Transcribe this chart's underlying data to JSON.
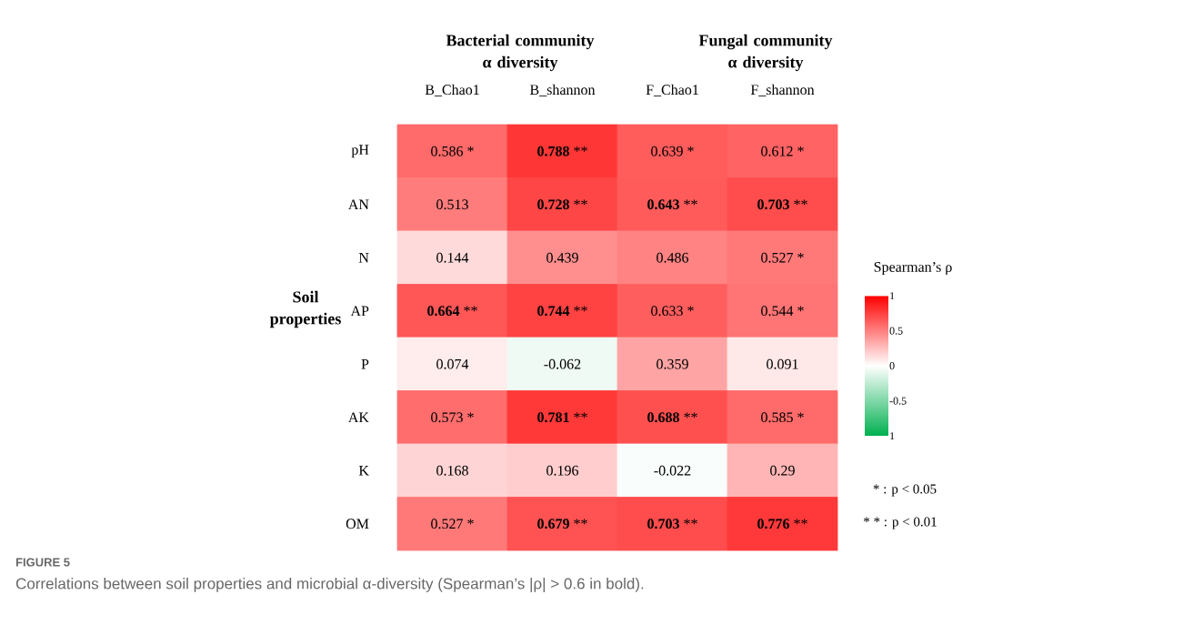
{
  "chart_data": {
    "type": "heatmap",
    "categories": [
      "B_Chao1",
      "B_shannon",
      "F_Chao1",
      "F_shannon"
    ],
    "y_categories": [
      "pH",
      "AN",
      "N",
      "AP",
      "P",
      "AK",
      "K",
      "OM"
    ],
    "ylabel": "Soil properties",
    "clabel": "Spearman’s ρ",
    "cells": [
      [
        0.586,
        0.788,
        0.639,
        0.612
      ],
      [
        0.513,
        0.728,
        0.643,
        0.703
      ],
      [
        0.144,
        0.439,
        0.486,
        0.527
      ],
      [
        0.664,
        0.744,
        0.633,
        0.544
      ],
      [
        0.074,
        -0.062,
        0.359,
        0.091
      ],
      [
        0.573,
        0.781,
        0.688,
        0.585
      ],
      [
        0.168,
        0.196,
        -0.022,
        0.29
      ],
      [
        0.527,
        0.679,
        0.703,
        0.776
      ]
    ],
    "cell_labels": [
      [
        "0.586 *",
        "**0.788** **",
        "0.639 *",
        "0.612 *"
      ],
      [
        "0.513",
        "**0.728** **",
        "**0.643** **",
        "**0.703** **"
      ],
      [
        "0.144",
        "0.439",
        "0.486",
        "0.527 *"
      ],
      [
        "**0.664** **",
        "**0.744** **",
        "0.633 *",
        "0.544 *"
      ],
      [
        "0.074",
        "-0.062",
        "0.359",
        "0.091"
      ],
      [
        "0.573 *",
        "**0.781** **",
        "**0.688** **",
        "0.585 *"
      ],
      [
        "0.168",
        "0.196",
        "-0.022",
        "0.29"
      ],
      [
        "0.527 *",
        "**0.679** **",
        "**0.703** **",
        "**0.776** **"
      ]
    ],
    "clim": [
      -1,
      1
    ],
    "cticks": [
      1,
      0.5,
      0,
      -0.5,
      {
        "value": -1,
        "label": "1"
      }
    ],
    "annotations": [
      "Bacterial community α diversity",
      "Fungal community α diversity",
      "* : p < 0.05",
      "* * : p < 0.01",
      "FIGURE 5",
      "Correlations between soil properties and microbial α-diversity (Spearman’s |ρ| > 0.6 in bold)."
    ]
  }
}
